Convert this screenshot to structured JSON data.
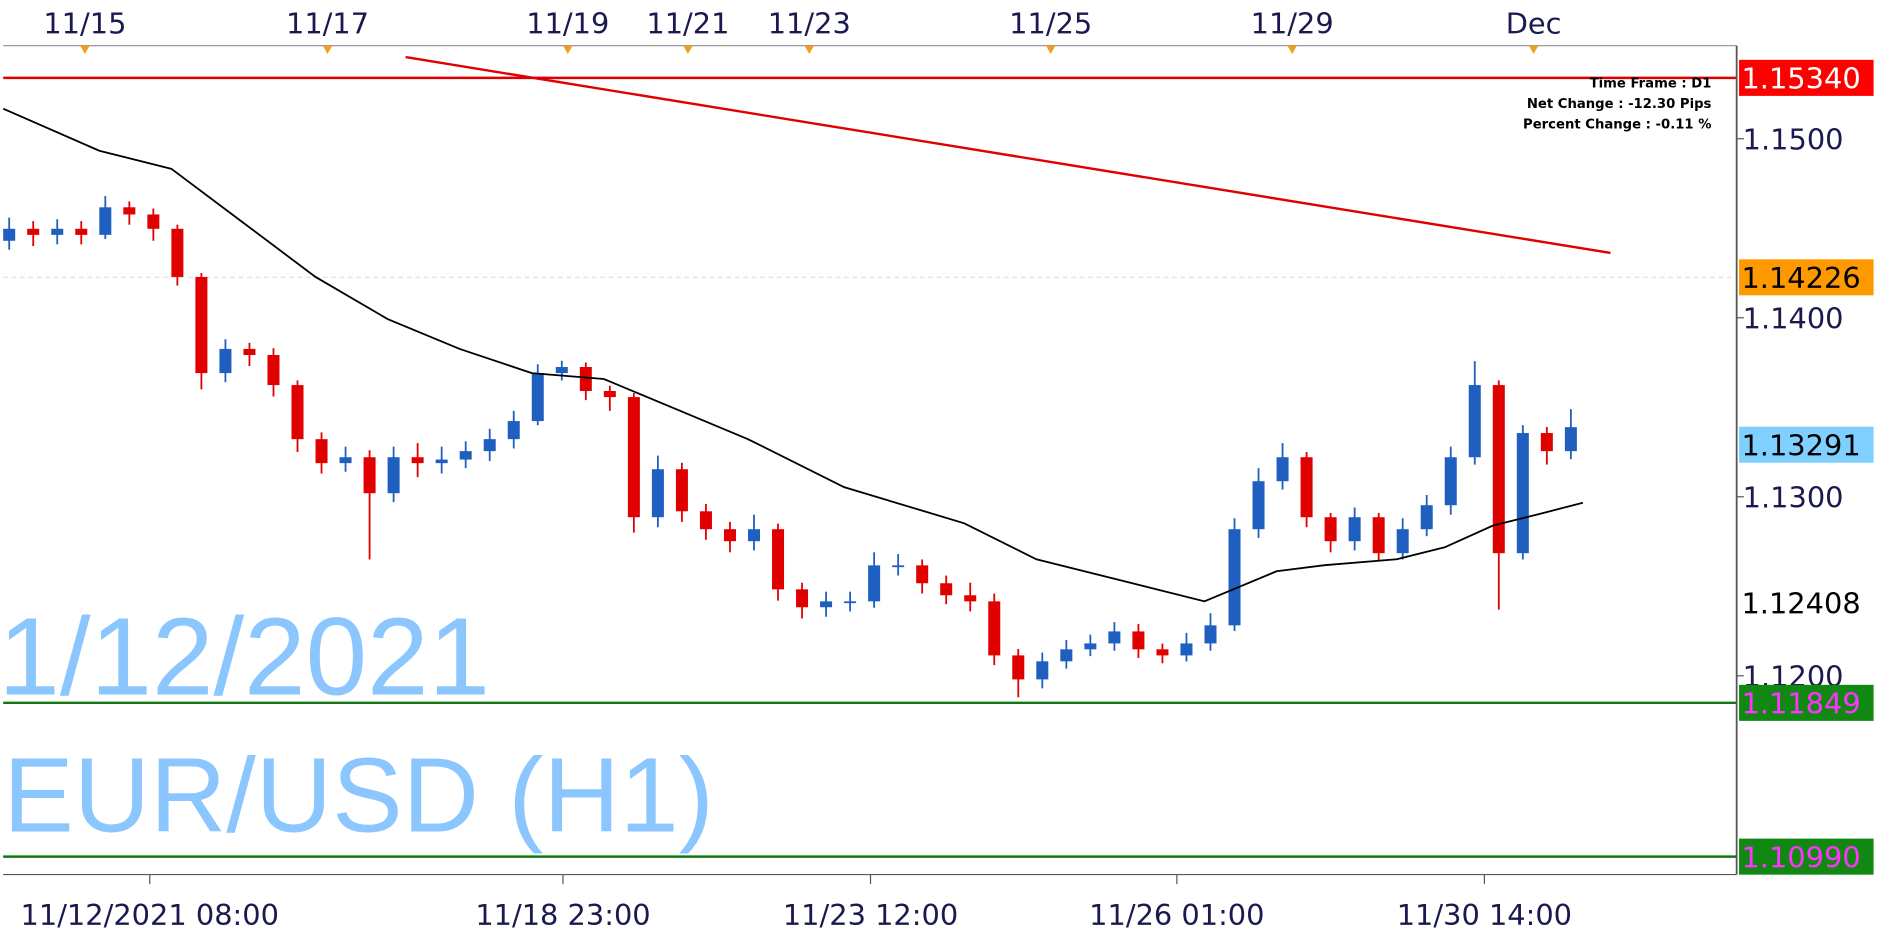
{
  "chart_data": {
    "type": "candlestick",
    "symbol": "EUR/USD (H1)",
    "date": "1/12/2021",
    "info": [
      "Time Frame : D1",
      "Net Change : -12.30 Pips",
      "Percent Change : -0.11 %"
    ],
    "xlim": [
      -0.25,
      71.9
    ],
    "ylim": [
      1.1089,
      1.1552
    ],
    "yticks": [
      {
        "value": 1.15,
        "label": "1.1500"
      },
      {
        "value": 1.14,
        "label": "1.1400"
      },
      {
        "value": 1.13,
        "label": "1.1300"
      },
      {
        "value": 1.12,
        "label": "1.1200"
      }
    ],
    "top_dates": {
      "index": [
        3.15,
        13.25,
        23.25,
        28.25,
        33.3,
        43.35,
        53.4,
        63.45
      ],
      "labels": [
        "11/15",
        "11/17",
        "11/19",
        "11/21",
        "11/23",
        "11/25",
        "11/29",
        "Dec"
      ]
    },
    "bottom_times": {
      "index": [
        5.85,
        23.05,
        35.85,
        48.6,
        61.4
      ],
      "labels": [
        "11/12/2021 08:00",
        "11/18 23:00",
        "11/23 12:00",
        "11/26 01:00",
        "11/30 14:00"
      ]
    },
    "up_color": "#1f5fbf",
    "down_color": "#e00000",
    "open": [
      1.1443,
      1.14497,
      1.14463,
      1.14497,
      1.14463,
      1.14617,
      1.14577,
      1.14497,
      1.14228,
      1.13691,
      1.13826,
      1.13792,
      1.13624,
      1.13322,
      1.13188,
      1.13221,
      1.1302,
      1.13221,
      1.13188,
      1.13208,
      1.13255,
      1.13322,
      1.13423,
      1.13691,
      1.13725,
      1.13591,
      1.13557,
      1.12886,
      1.13154,
      1.12919,
      1.12819,
      1.12752,
      1.12819,
      1.12483,
      1.12383,
      1.12416,
      1.12416,
      1.12617,
      1.12617,
      1.12517,
      1.1245,
      1.12416,
      1.12114,
      1.1198,
      1.12081,
      1.12148,
      1.12181,
      1.12248,
      1.12148,
      1.12114,
      1.12181,
      1.12282,
      1.12819,
      1.13087,
      1.13221,
      1.12886,
      1.12752,
      1.12886,
      1.12685,
      1.12819,
      1.12953,
      1.13221,
      1.13624,
      1.12685,
      1.13356,
      1.13255
    ],
    "high": [
      1.1456,
      1.1454,
      1.1455,
      1.1454,
      1.1468,
      1.1465,
      1.1461,
      1.1452,
      1.1425,
      1.1388,
      1.1386,
      1.1383,
      1.1365,
      1.1336,
      1.1328,
      1.1326,
      1.1328,
      1.133,
      1.1328,
      1.1331,
      1.1338,
      1.1348,
      1.1374,
      1.1376,
      1.1375,
      1.1362,
      1.1358,
      1.1323,
      1.1319,
      1.1296,
      1.1286,
      1.129,
      1.1285,
      1.1252,
      1.1247,
      1.1247,
      1.1269,
      1.1268,
      1.1265,
      1.1256,
      1.1252,
      1.1246,
      1.1215,
      1.1213,
      1.122,
      1.1223,
      1.123,
      1.1229,
      1.1218,
      1.1224,
      1.1235,
      1.1288,
      1.1316,
      1.133,
      1.1325,
      1.1291,
      1.1294,
      1.1291,
      1.1288,
      1.1301,
      1.1328,
      1.13758,
      1.1365,
      1.134,
      1.1339,
      1.1349
    ],
    "low": [
      1.1438,
      1.144,
      1.1441,
      1.1441,
      1.1444,
      1.1452,
      1.1443,
      1.1418,
      1.136,
      1.1364,
      1.1373,
      1.1356,
      1.1325,
      1.1313,
      1.1314,
      1.1265,
      1.1297,
      1.1311,
      1.1313,
      1.1316,
      1.132,
      1.1327,
      1.134,
      1.1365,
      1.1354,
      1.1348,
      1.128,
      1.1283,
      1.1286,
      1.1276,
      1.1269,
      1.127,
      1.1242,
      1.1232,
      1.1233,
      1.1236,
      1.1238,
      1.1256,
      1.1246,
      1.124,
      1.1236,
      1.1206,
      1.1188,
      1.1193,
      1.1204,
      1.1211,
      1.1214,
      1.121,
      1.1207,
      1.1208,
      1.1214,
      1.1225,
      1.1277,
      1.1304,
      1.1283,
      1.1269,
      1.127,
      1.1264,
      1.1265,
      1.1278,
      1.129,
      1.1318,
      1.1237,
      1.1265,
      1.1318,
      1.1321
    ],
    "close": [
      1.14497,
      1.14463,
      1.14497,
      1.14463,
      1.14617,
      1.14577,
      1.14497,
      1.14228,
      1.13691,
      1.13826,
      1.13792,
      1.13624,
      1.13322,
      1.13188,
      1.13221,
      1.1302,
      1.13221,
      1.13188,
      1.13208,
      1.13255,
      1.13322,
      1.13423,
      1.13691,
      1.13725,
      1.13591,
      1.13557,
      1.12886,
      1.13154,
      1.12919,
      1.12819,
      1.12752,
      1.12819,
      1.12483,
      1.12383,
      1.12416,
      1.12416,
      1.12617,
      1.12617,
      1.12517,
      1.1245,
      1.12416,
      1.12114,
      1.1198,
      1.12081,
      1.12148,
      1.12181,
      1.12248,
      1.12148,
      1.12114,
      1.12181,
      1.12282,
      1.12819,
      1.13087,
      1.13221,
      1.12886,
      1.12752,
      1.12886,
      1.12685,
      1.12819,
      1.12953,
      1.13221,
      1.13624,
      1.12685,
      1.13356,
      1.13255,
      1.13389
    ],
    "moving_average": {
      "color": "#000000",
      "index": [
        -0.25,
        3.75,
        6.75,
        9.75,
        12.75,
        15.75,
        18.75,
        21.75,
        24.75,
        27.75,
        30.75,
        34.75,
        39.75,
        42.75,
        46.75,
        49.75,
        52.75,
        54.75,
        57.75,
        59.75,
        61.75,
        63.75,
        65.5
      ],
      "values": [
        1.15168,
        1.14933,
        1.14832,
        1.1453,
        1.14228,
        1.13993,
        1.13826,
        1.13691,
        1.13658,
        1.1349,
        1.13322,
        1.13054,
        1.12852,
        1.12651,
        1.12517,
        1.12416,
        1.12584,
        1.12618,
        1.12651,
        1.12718,
        1.12839,
        1.12906,
        1.12967
      ]
    },
    "trendline": {
      "color": "#e00000",
      "index": [
        16.5,
        66.65
      ],
      "values": [
        1.15456,
        1.14362
      ]
    },
    "levels": [
      {
        "value": 1.1534,
        "label": "1.15340",
        "box": "#ff0000",
        "text_color": "#ffffff",
        "line": "#e00000",
        "dashed": false
      },
      {
        "value": 1.14226,
        "label": "1.14226",
        "box": "#ff9900",
        "text_color": "#000000",
        "line": "#dddddd",
        "dashed": true
      },
      {
        "value": 1.13291,
        "label": "1.13291",
        "box": "#7fd0ff",
        "text_color": "#000000",
        "line": null,
        "dashed": false
      },
      {
        "value": 1.12408,
        "label": "1.12408",
        "box": null,
        "text_color": "#000000",
        "line": null,
        "dashed": false
      },
      {
        "value": 1.11849,
        "label": "1.11849",
        "box": "#118811",
        "text_color": "#ff33ff",
        "line": "#117711",
        "dashed": false
      },
      {
        "value": 1.1099,
        "label": "1.10990",
        "box": "#118811",
        "text_color": "#ff33ff",
        "line": "#117711",
        "dashed": false
      }
    ]
  }
}
